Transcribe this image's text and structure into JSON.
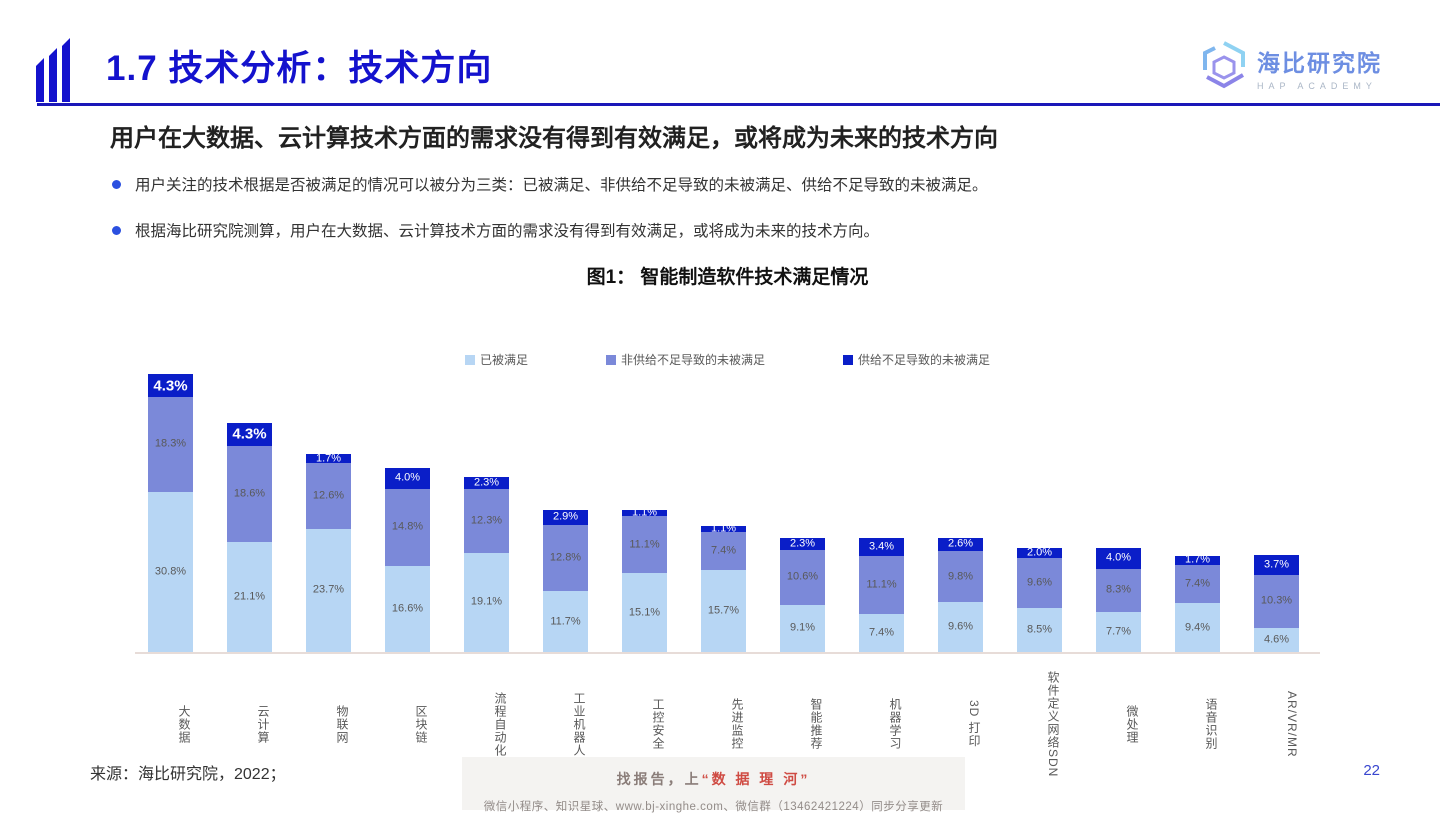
{
  "slide": {
    "title": "1.7 技术分析：技术方向",
    "page_number": "22"
  },
  "logo": {
    "name": "海比研究院",
    "subtitle": "HAP ACADEMY"
  },
  "heading": "用户在大数据、云计算技术方面的需求没有得到有效满足，或将成为未来的技术方向",
  "bullets": [
    "用户关注的技术根据是否被满足的情况可以被分为三类：已被满足、非供给不足导致的未被满足、供给不足导致的未被满足。",
    "根据海比研究院测算，用户在大数据、云计算技术方面的需求没有得到有效满足，或将成为未来的技术方向。"
  ],
  "chart_data": {
    "type": "bar",
    "variant": "stacked",
    "title": "图1： 智能制造软件技术满足情况",
    "unit": "%",
    "categories": [
      "大数据",
      "云计算",
      "物联网",
      "区块链",
      "流程自动化",
      "工业机器人",
      "工控安全",
      "先进监控",
      "智能推荐",
      "机器学习",
      "3D 打印",
      "软件定义网络SDN",
      "微处理",
      "语音识别",
      "AR/VR/MR"
    ],
    "series": [
      {
        "name": "已被满足",
        "color": "#b7d6f4",
        "label_color": "#595959",
        "values": [
          30.8,
          21.1,
          23.7,
          16.6,
          19.1,
          11.7,
          15.1,
          15.7,
          9.1,
          7.4,
          9.6,
          8.5,
          7.7,
          9.4,
          4.6
        ]
      },
      {
        "name": "非供给不足导致的未被满足",
        "color": "#7b89d9",
        "label_color": "#595959",
        "values": [
          18.3,
          18.6,
          12.6,
          14.8,
          12.3,
          12.8,
          11.1,
          7.4,
          10.6,
          11.1,
          9.8,
          9.6,
          8.3,
          7.4,
          10.3
        ]
      },
      {
        "name": "供给不足导致的未被满足",
        "color": "#0a1ec8",
        "label_color": "#ffffff",
        "values": [
          4.3,
          4.3,
          1.7,
          4.0,
          2.3,
          2.9,
          1.1,
          1.1,
          2.3,
          3.4,
          2.6,
          2.0,
          4.0,
          1.7,
          3.7
        ]
      }
    ],
    "emphasized_label_indexes": [
      0,
      1
    ],
    "ylim": [
      0,
      55
    ],
    "gridlines": false,
    "legend_position": "top-center"
  },
  "footer": {
    "source": "来源：海比研究院，2022；",
    "watermark_prefix": "找报告，上",
    "watermark_highlight": "“数 据 瑆 河”",
    "watermark_line2": "微信小程序、知识星球、www.bj-xinghe.com、微信群（13462421224）同步分享更新"
  }
}
